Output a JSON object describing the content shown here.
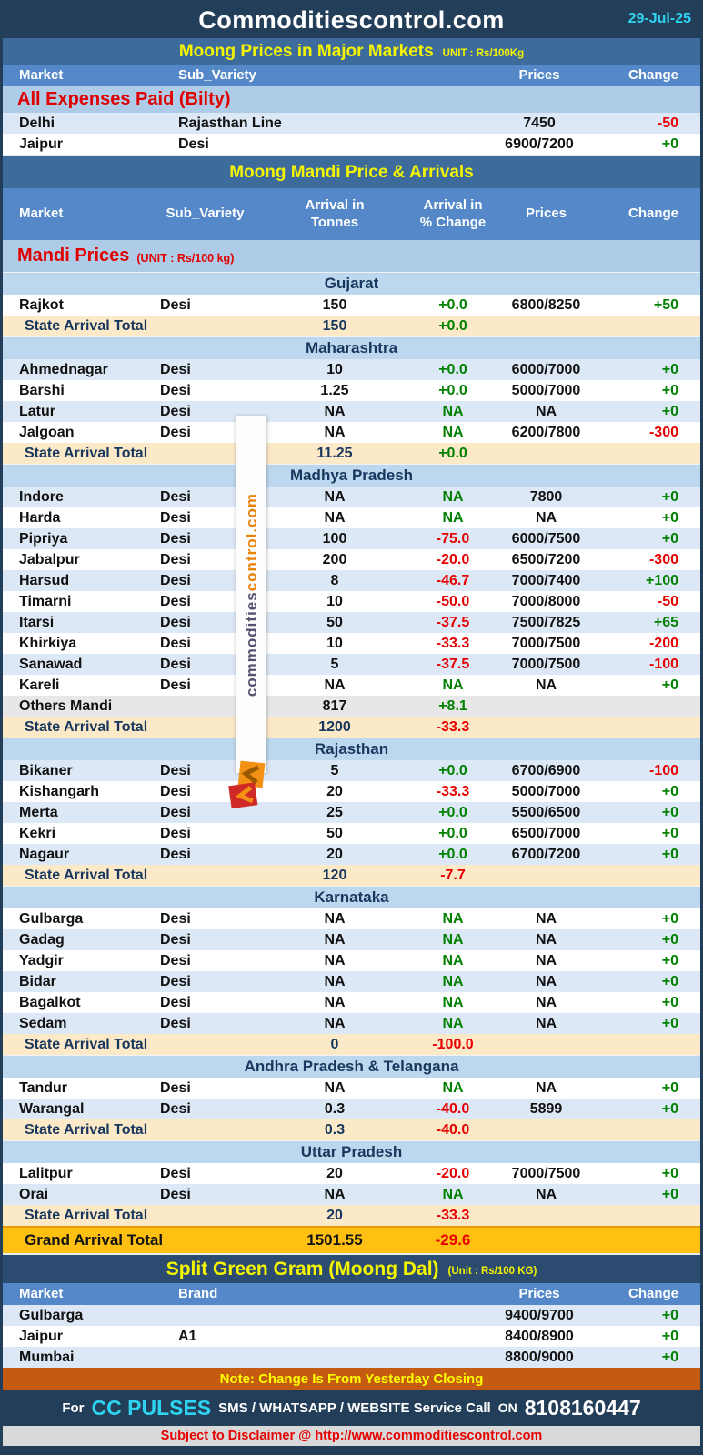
{
  "header": {
    "title": "Commoditiescontrol.com",
    "date": "29-Jul-25"
  },
  "major_markets": {
    "title": "Moong Prices in Major Markets",
    "unit": "UNIT : Rs/100Kg",
    "columns": [
      "Market",
      "Sub_Variety",
      "Prices",
      "Change"
    ],
    "section_label": "All Expenses Paid (Bilty)",
    "rows": [
      {
        "market": "Delhi",
        "sub_variety": "Rajasthan Line",
        "prices": "7450",
        "change": "-50"
      },
      {
        "market": "Jaipur",
        "sub_variety": "Desi",
        "prices": "6900/7200",
        "change": "+0"
      }
    ]
  },
  "mandi": {
    "title": "Moong Mandi Price & Arrivals",
    "columns": [
      "Market",
      "Sub_Variety",
      "Arrival in\nTonnes",
      "Arrival  in\n% Change",
      "Prices",
      "Change"
    ],
    "label": "Mandi Prices",
    "label_unit": "(UNIT : Rs/100 kg)",
    "total_label": "State Arrival Total",
    "states": [
      {
        "name": "Gujarat",
        "rows": [
          [
            "Rajkot",
            "Desi",
            "150",
            "+0.0",
            "6800/8250",
            "+50"
          ]
        ],
        "total": {
          "tonnes": "150",
          "pct": "+0.0"
        }
      },
      {
        "name": "Maharashtra",
        "rows": [
          [
            "Ahmednagar",
            "Desi",
            "10",
            "+0.0",
            "6000/7000",
            "+0"
          ],
          [
            "Barshi",
            "Desi",
            "1.25",
            "+0.0",
            "5000/7000",
            "+0"
          ],
          [
            "Latur",
            "Desi",
            "NA",
            "NA",
            "NA",
            "+0"
          ],
          [
            "Jalgoan",
            "Desi",
            "NA",
            "NA",
            "6200/7800",
            "-300"
          ]
        ],
        "total": {
          "tonnes": "11.25",
          "pct": "+0.0"
        }
      },
      {
        "name": "Madhya Pradesh",
        "rows": [
          [
            "Indore",
            "Desi",
            "NA",
            "NA",
            "7800",
            "+0"
          ],
          [
            "Harda",
            "Desi",
            "NA",
            "NA",
            "NA",
            "+0"
          ],
          [
            "Pipriya",
            "Desi",
            "100",
            "-75.0",
            "6000/7500",
            "+0"
          ],
          [
            "Jabalpur",
            "Desi",
            "200",
            "-20.0",
            "6500/7200",
            "-300"
          ],
          [
            "Harsud",
            "Desi",
            "8",
            "-46.7",
            "7000/7400",
            "+100"
          ],
          [
            "Timarni",
            "Desi",
            "10",
            "-50.0",
            "7000/8000",
            "-50"
          ],
          [
            "Itarsi",
            "Desi",
            "50",
            "-37.5",
            "7500/7825",
            "+65"
          ],
          [
            "Khirkiya",
            "Desi",
            "10",
            "-33.3",
            "7000/7500",
            "-200"
          ],
          [
            "Sanawad",
            "Desi",
            "5",
            "-37.5",
            "7000/7500",
            "-100"
          ],
          [
            "Kareli",
            "Desi",
            "NA",
            "NA",
            "NA",
            "+0"
          ],
          [
            "Others Mandi",
            "",
            "817",
            "+8.1",
            "",
            "",
            "others"
          ]
        ],
        "total": {
          "tonnes": "1200",
          "pct": "-33.3"
        }
      },
      {
        "name": "Rajasthan",
        "rows": [
          [
            "Bikaner",
            "Desi",
            "5",
            "+0.0",
            "6700/6900",
            "-100"
          ],
          [
            "Kishangarh",
            "Desi",
            "20",
            "-33.3",
            "5000/7000",
            "+0"
          ],
          [
            "Merta",
            "Desi",
            "25",
            "+0.0",
            "5500/6500",
            "+0"
          ],
          [
            "Kekri",
            "Desi",
            "50",
            "+0.0",
            "6500/7000",
            "+0"
          ],
          [
            "Nagaur",
            "Desi",
            "20",
            "+0.0",
            "6700/7200",
            "+0"
          ]
        ],
        "total": {
          "tonnes": "120",
          "pct": "-7.7"
        }
      },
      {
        "name": "Karnataka",
        "rows": [
          [
            "Gulbarga",
            "Desi",
            "NA",
            "NA",
            "NA",
            "+0"
          ],
          [
            "Gadag",
            "Desi",
            "NA",
            "NA",
            "NA",
            "+0"
          ],
          [
            "Yadgir",
            "Desi",
            "NA",
            "NA",
            "NA",
            "+0"
          ],
          [
            "Bidar",
            "Desi",
            "NA",
            "NA",
            "NA",
            "+0"
          ],
          [
            "Bagalkot",
            "Desi",
            "NA",
            "NA",
            "NA",
            "+0"
          ],
          [
            "Sedam",
            "Desi",
            "NA",
            "NA",
            "NA",
            "+0"
          ]
        ],
        "total": {
          "tonnes": "0",
          "pct": "-100.0"
        }
      },
      {
        "name": "Andhra Pradesh & Telangana",
        "rows": [
          [
            "Tandur",
            "Desi",
            "NA",
            "NA",
            "NA",
            "+0"
          ],
          [
            "Warangal",
            "Desi",
            "0.3",
            "-40.0",
            "5899",
            "+0"
          ]
        ],
        "total": {
          "tonnes": "0.3",
          "pct": "-40.0"
        }
      },
      {
        "name": "Uttar Pradesh",
        "rows": [
          [
            "Lalitpur",
            "Desi",
            "20",
            "-20.0",
            "7000/7500",
            "+0"
          ],
          [
            "Orai",
            "Desi",
            "NA",
            "NA",
            "NA",
            "+0"
          ]
        ],
        "total": {
          "tonnes": "20",
          "pct": "-33.3"
        }
      }
    ],
    "grand_total": {
      "label": "Grand Arrival Total",
      "tonnes": "1501.55",
      "pct": "-29.6"
    }
  },
  "split": {
    "title": "Split Green Gram (Moong Dal)",
    "unit": "(Unit : Rs/100 KG)",
    "columns": [
      "Market",
      "Brand",
      "Prices",
      "Change"
    ],
    "rows": [
      {
        "market": "Gulbarga",
        "brand": "",
        "prices": "9400/9700",
        "change": "+0"
      },
      {
        "market": "Jaipur",
        "brand": "A1",
        "prices": "8400/8900",
        "change": "+0"
      },
      {
        "market": "Mumbai",
        "brand": "",
        "prices": "8800/9000",
        "change": "+0"
      }
    ]
  },
  "footer": {
    "note": "Note: Change Is From Yesterday Closing",
    "service_prefix": "For",
    "service_brand": "CC PULSES",
    "service_text": "SMS / WHATSAPP / WEBSITE Service Call",
    "service_on": "ON",
    "service_number": "8108160447",
    "disclaimer": "Subject to Disclaimer @  http://www.commoditiescontrol.com"
  },
  "watermark": {
    "parts": [
      "commodities",
      "control",
      ".com"
    ]
  },
  "colors": {
    "positive_green": "#018001",
    "negative_red": "#E60000",
    "title_navy": "#233E59",
    "section_steel_blue": "#3D6B9B",
    "column_header_blue": "#5488C8",
    "state_band_blue": "#BDD7EE",
    "label_band_blue": "#AECBE8",
    "stripe_blue": "#DCE8F5",
    "total_cream": "#FCE9C8",
    "grand_gold": "#FFC011",
    "note_orange": "#C55A11",
    "others_gray": "#E7E7E7",
    "accent_yellow": "#F5F500",
    "date_cyan": "#2ED3F0",
    "red_label": "#E00000",
    "watermark_slate": "#55516E",
    "watermark_orange": "#E8830C"
  }
}
